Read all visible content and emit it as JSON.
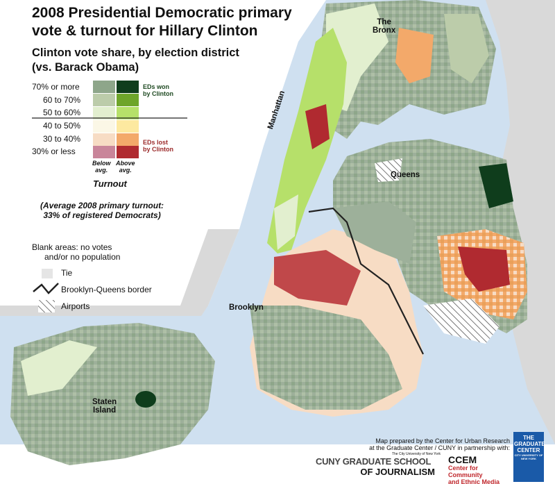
{
  "title_line1": "2008 Presidential Democratic primary",
  "title_line2": "vote & turnout for Hillary Clinton",
  "subtitle_line1": "Clinton vote share, by election district",
  "subtitle_line2": "(vs. Barack Obama)",
  "legend": {
    "rows": [
      {
        "label": "70% or more",
        "below": "#8ea68a",
        "above": "#0f3d1c"
      },
      {
        "label": "60 to 70%",
        "below": "#bcccaa",
        "above": "#6ea52a"
      },
      {
        "label": "50 to 60%",
        "below": "#e2efcf",
        "above": "#b6e06a"
      },
      {
        "label": "40 to 50%",
        "below": "#fbf7e6",
        "above": "#fde9a0"
      },
      {
        "label": "30 to 40%",
        "below": "#f7dcc4",
        "above": "#f3a96a"
      },
      {
        "label": "30% or less",
        "below": "#c9859a",
        "above": "#b02a30"
      }
    ],
    "won_label_1": "EDs won",
    "won_label_2": "by Clinton",
    "lost_label_1": "EDs lost",
    "lost_label_2": "by Clinton",
    "below_1": "Below",
    "below_2": "avg.",
    "above_1": "Above",
    "above_2": "avg.",
    "turnout": "Turnout",
    "avg_line1": "(Average 2008 primary turnout:",
    "avg_line2": "33% of registered Democrats)",
    "blank_1": "Blank areas: no votes",
    "blank_2": "and/or no population",
    "tie": "Tie",
    "border": "Brooklyn-Queens border",
    "airports": "Airports"
  },
  "map_labels": {
    "bronx_1": "The",
    "bronx_2": "Bronx",
    "manhattan": "Manhattan",
    "queens": "Queens",
    "brooklyn": "Brooklyn",
    "staten_1": "Staten",
    "staten_2": "Island"
  },
  "credits": {
    "line1": "Map prepared by the Center for Urban Research",
    "line2": "at the Graduate Center / CUNY in partnership with:",
    "cuny_small": "The City University of New York",
    "cuny_1": "CUNY GRADUATE SCHOOL",
    "cuny_2": "OF JOURNALISM",
    "ccem_big": "CCEM",
    "ccem_1": "Center for Community",
    "ccem_2": "and Ethnic Media",
    "gc_1": "THE",
    "gc_2": "GRADUATE",
    "gc_3": "CENTER",
    "gc_4": "CITY UNIVERSITY OF NEW YORK"
  },
  "colors": {
    "water": "#cfe0f0",
    "land_gray": "#d9d9d9",
    "grey_green": "#8ea68a",
    "dark_red": "#b02a30"
  }
}
